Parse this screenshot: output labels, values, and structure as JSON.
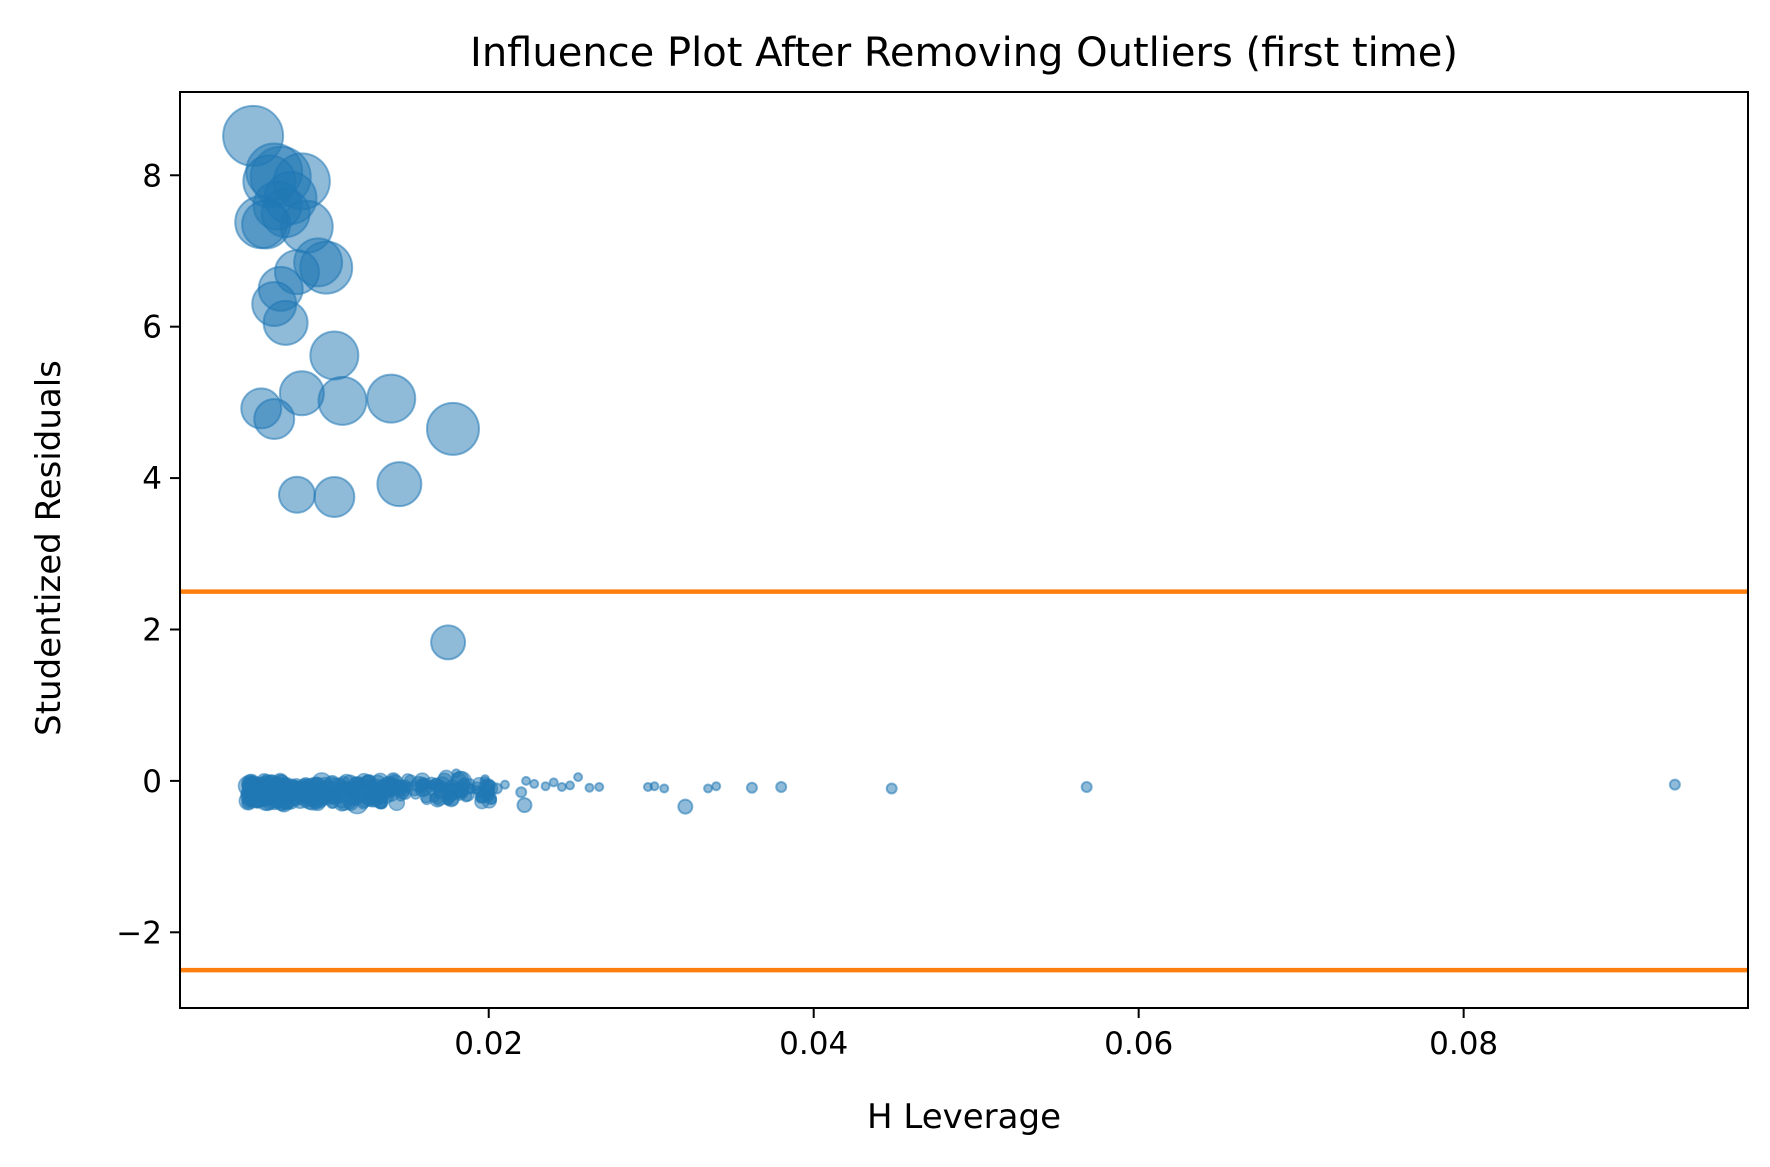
{
  "chart_data": {
    "type": "scatter",
    "title": "Influence Plot After Removing Outliers (first time)",
    "xlabel": "H Leverage",
    "ylabel": "Studentized Residuals",
    "xlim": [
      0.001,
      0.0975
    ],
    "ylim": [
      -3.0,
      9.1
    ],
    "xticks": [
      0.02,
      0.04,
      0.06,
      0.08
    ],
    "xtick_labels": [
      "0.02",
      "0.04",
      "0.06",
      "0.08"
    ],
    "yticks": [
      -2,
      0,
      2,
      4,
      6,
      8
    ],
    "ytick_labels": [
      "−2",
      "0",
      "2",
      "4",
      "6",
      "8"
    ],
    "grid": false,
    "threshold_lines": [
      2.5,
      -2.5
    ],
    "colors": {
      "points": "#1f77b4",
      "threshold": "#ff7f0e",
      "axes": "#000000"
    },
    "size_note": "marker area encodes influence",
    "points": [
      {
        "x": 0.0055,
        "y": 8.52,
        "s": 30
      },
      {
        "x": 0.0068,
        "y": 8.05,
        "s": 28
      },
      {
        "x": 0.0072,
        "y": 7.98,
        "s": 30
      },
      {
        "x": 0.0065,
        "y": 7.92,
        "s": 26
      },
      {
        "x": 0.0085,
        "y": 7.92,
        "s": 28
      },
      {
        "x": 0.0078,
        "y": 7.7,
        "s": 26
      },
      {
        "x": 0.007,
        "y": 7.6,
        "s": 24
      },
      {
        "x": 0.0075,
        "y": 7.5,
        "s": 24
      },
      {
        "x": 0.006,
        "y": 7.38,
        "s": 26
      },
      {
        "x": 0.0063,
        "y": 7.35,
        "s": 24
      },
      {
        "x": 0.0088,
        "y": 7.32,
        "s": 26
      },
      {
        "x": 0.0095,
        "y": 6.85,
        "s": 24
      },
      {
        "x": 0.01,
        "y": 6.78,
        "s": 26
      },
      {
        "x": 0.0082,
        "y": 6.72,
        "s": 22
      },
      {
        "x": 0.0072,
        "y": 6.5,
        "s": 22
      },
      {
        "x": 0.0068,
        "y": 6.3,
        "s": 22
      },
      {
        "x": 0.0075,
        "y": 6.05,
        "s": 22
      },
      {
        "x": 0.0105,
        "y": 5.62,
        "s": 24
      },
      {
        "x": 0.0085,
        "y": 5.12,
        "s": 22
      },
      {
        "x": 0.011,
        "y": 5.02,
        "s": 24
      },
      {
        "x": 0.014,
        "y": 5.05,
        "s": 24
      },
      {
        "x": 0.006,
        "y": 4.92,
        "s": 20
      },
      {
        "x": 0.0068,
        "y": 4.78,
        "s": 20
      },
      {
        "x": 0.0178,
        "y": 4.65,
        "s": 26
      },
      {
        "x": 0.0145,
        "y": 3.92,
        "s": 22
      },
      {
        "x": 0.0082,
        "y": 3.78,
        "s": 18
      },
      {
        "x": 0.0105,
        "y": 3.75,
        "s": 20
      },
      {
        "x": 0.0175,
        "y": 1.83,
        "s": 17
      },
      {
        "x": 0.0321,
        "y": -0.34,
        "s": 7
      },
      {
        "x": 0.0222,
        "y": -0.32,
        "s": 7
      },
      {
        "x": 0.093,
        "y": -0.05,
        "s": 5
      },
      {
        "x": 0.0568,
        "y": -0.08,
        "s": 5
      },
      {
        "x": 0.0448,
        "y": -0.1,
        "s": 5
      },
      {
        "x": 0.038,
        "y": -0.08,
        "s": 5
      },
      {
        "x": 0.0362,
        "y": -0.09,
        "s": 5
      },
      {
        "x": 0.034,
        "y": -0.07,
        "s": 4
      },
      {
        "x": 0.0335,
        "y": -0.1,
        "s": 4
      },
      {
        "x": 0.0308,
        "y": -0.1,
        "s": 4
      },
      {
        "x": 0.0302,
        "y": -0.07,
        "s": 4
      },
      {
        "x": 0.0298,
        "y": -0.08,
        "s": 4
      },
      {
        "x": 0.0268,
        "y": -0.08,
        "s": 4
      },
      {
        "x": 0.0262,
        "y": -0.09,
        "s": 4
      },
      {
        "x": 0.0255,
        "y": 0.05,
        "s": 4
      },
      {
        "x": 0.025,
        "y": -0.06,
        "s": 4
      },
      {
        "x": 0.0245,
        "y": -0.08,
        "s": 4
      },
      {
        "x": 0.024,
        "y": -0.02,
        "s": 4
      },
      {
        "x": 0.0235,
        "y": -0.07,
        "s": 4
      },
      {
        "x": 0.0228,
        "y": -0.04,
        "s": 4
      },
      {
        "x": 0.0223,
        "y": 0.0,
        "s": 4
      },
      {
        "x": 0.022,
        "y": -0.15,
        "s": 5
      },
      {
        "x": 0.021,
        "y": -0.05,
        "s": 4
      },
      {
        "x": 0.0205,
        "y": -0.1,
        "s": 5
      },
      {
        "x": 0.02,
        "y": -0.2,
        "s": 5
      },
      {
        "x": 0.0195,
        "y": -0.22,
        "s": 5
      },
      {
        "x": 0.0188,
        "y": -0.1,
        "s": 5
      },
      {
        "x": 0.018,
        "y": 0.1,
        "s": 4
      },
      {
        "x": 0.0175,
        "y": -0.25,
        "s": 5
      },
      {
        "x": 0.0165,
        "y": -0.05,
        "s": 4
      }
    ]
  }
}
